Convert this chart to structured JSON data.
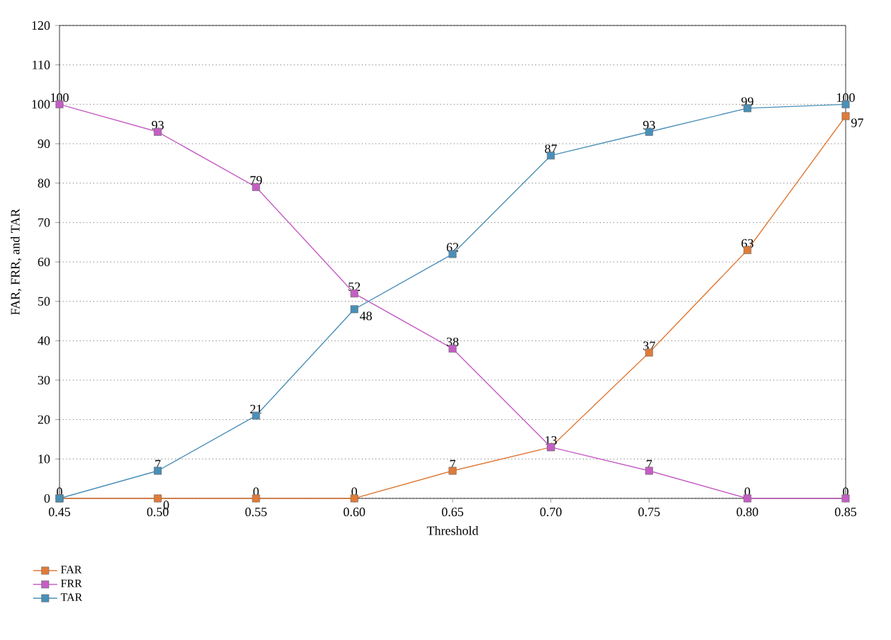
{
  "chart_data": {
    "type": "line",
    "xlabel": "Threshold",
    "ylabel": "FAR, FRR, and TAR",
    "x": [
      0.45,
      0.5,
      0.55,
      0.6,
      0.65,
      0.7,
      0.75,
      0.8,
      0.85
    ],
    "series": [
      {
        "name": "FAR",
        "color": "#e07b39",
        "values": [
          0,
          0,
          0,
          0,
          7,
          13,
          37,
          63,
          97
        ],
        "value_labels": [
          "0",
          "0",
          "0",
          "0",
          "7",
          "13",
          "37",
          "63",
          "97"
        ]
      },
      {
        "name": "FRR",
        "color": "#c45ec4",
        "values": [
          100,
          93,
          79,
          52,
          38,
          13,
          7,
          0,
          0
        ],
        "value_labels": [
          "100",
          "93",
          "79",
          "52",
          "38",
          null,
          "7",
          "0",
          "0"
        ]
      },
      {
        "name": "TAR",
        "color": "#4a8fb8",
        "values": [
          0,
          7,
          21,
          48,
          62,
          87,
          93,
          99,
          100
        ],
        "value_labels": [
          null,
          "7",
          "21",
          "48",
          "62",
          "87",
          "93",
          "99",
          "100"
        ]
      }
    ],
    "xlim": [
      0.45,
      0.85
    ],
    "xticks": [
      {
        "value": 0.45,
        "label": "0.45"
      },
      {
        "value": 0.5,
        "label": "0.50"
      },
      {
        "value": 0.55,
        "label": "0.55"
      },
      {
        "value": 0.6,
        "label": "0.60"
      },
      {
        "value": 0.65,
        "label": "0.65"
      },
      {
        "value": 0.7,
        "label": "0.70"
      },
      {
        "value": 0.75,
        "label": "0.75"
      },
      {
        "value": 0.8,
        "label": "0.80"
      },
      {
        "value": 0.85,
        "label": "0.85"
      }
    ],
    "ylim": [
      0,
      120
    ],
    "yticks": [
      0,
      10,
      20,
      30,
      40,
      50,
      60,
      70,
      80,
      90,
      100,
      110,
      120
    ],
    "grid": "y",
    "legend": "bottom left",
    "marker": "square",
    "line_style": "solid"
  }
}
